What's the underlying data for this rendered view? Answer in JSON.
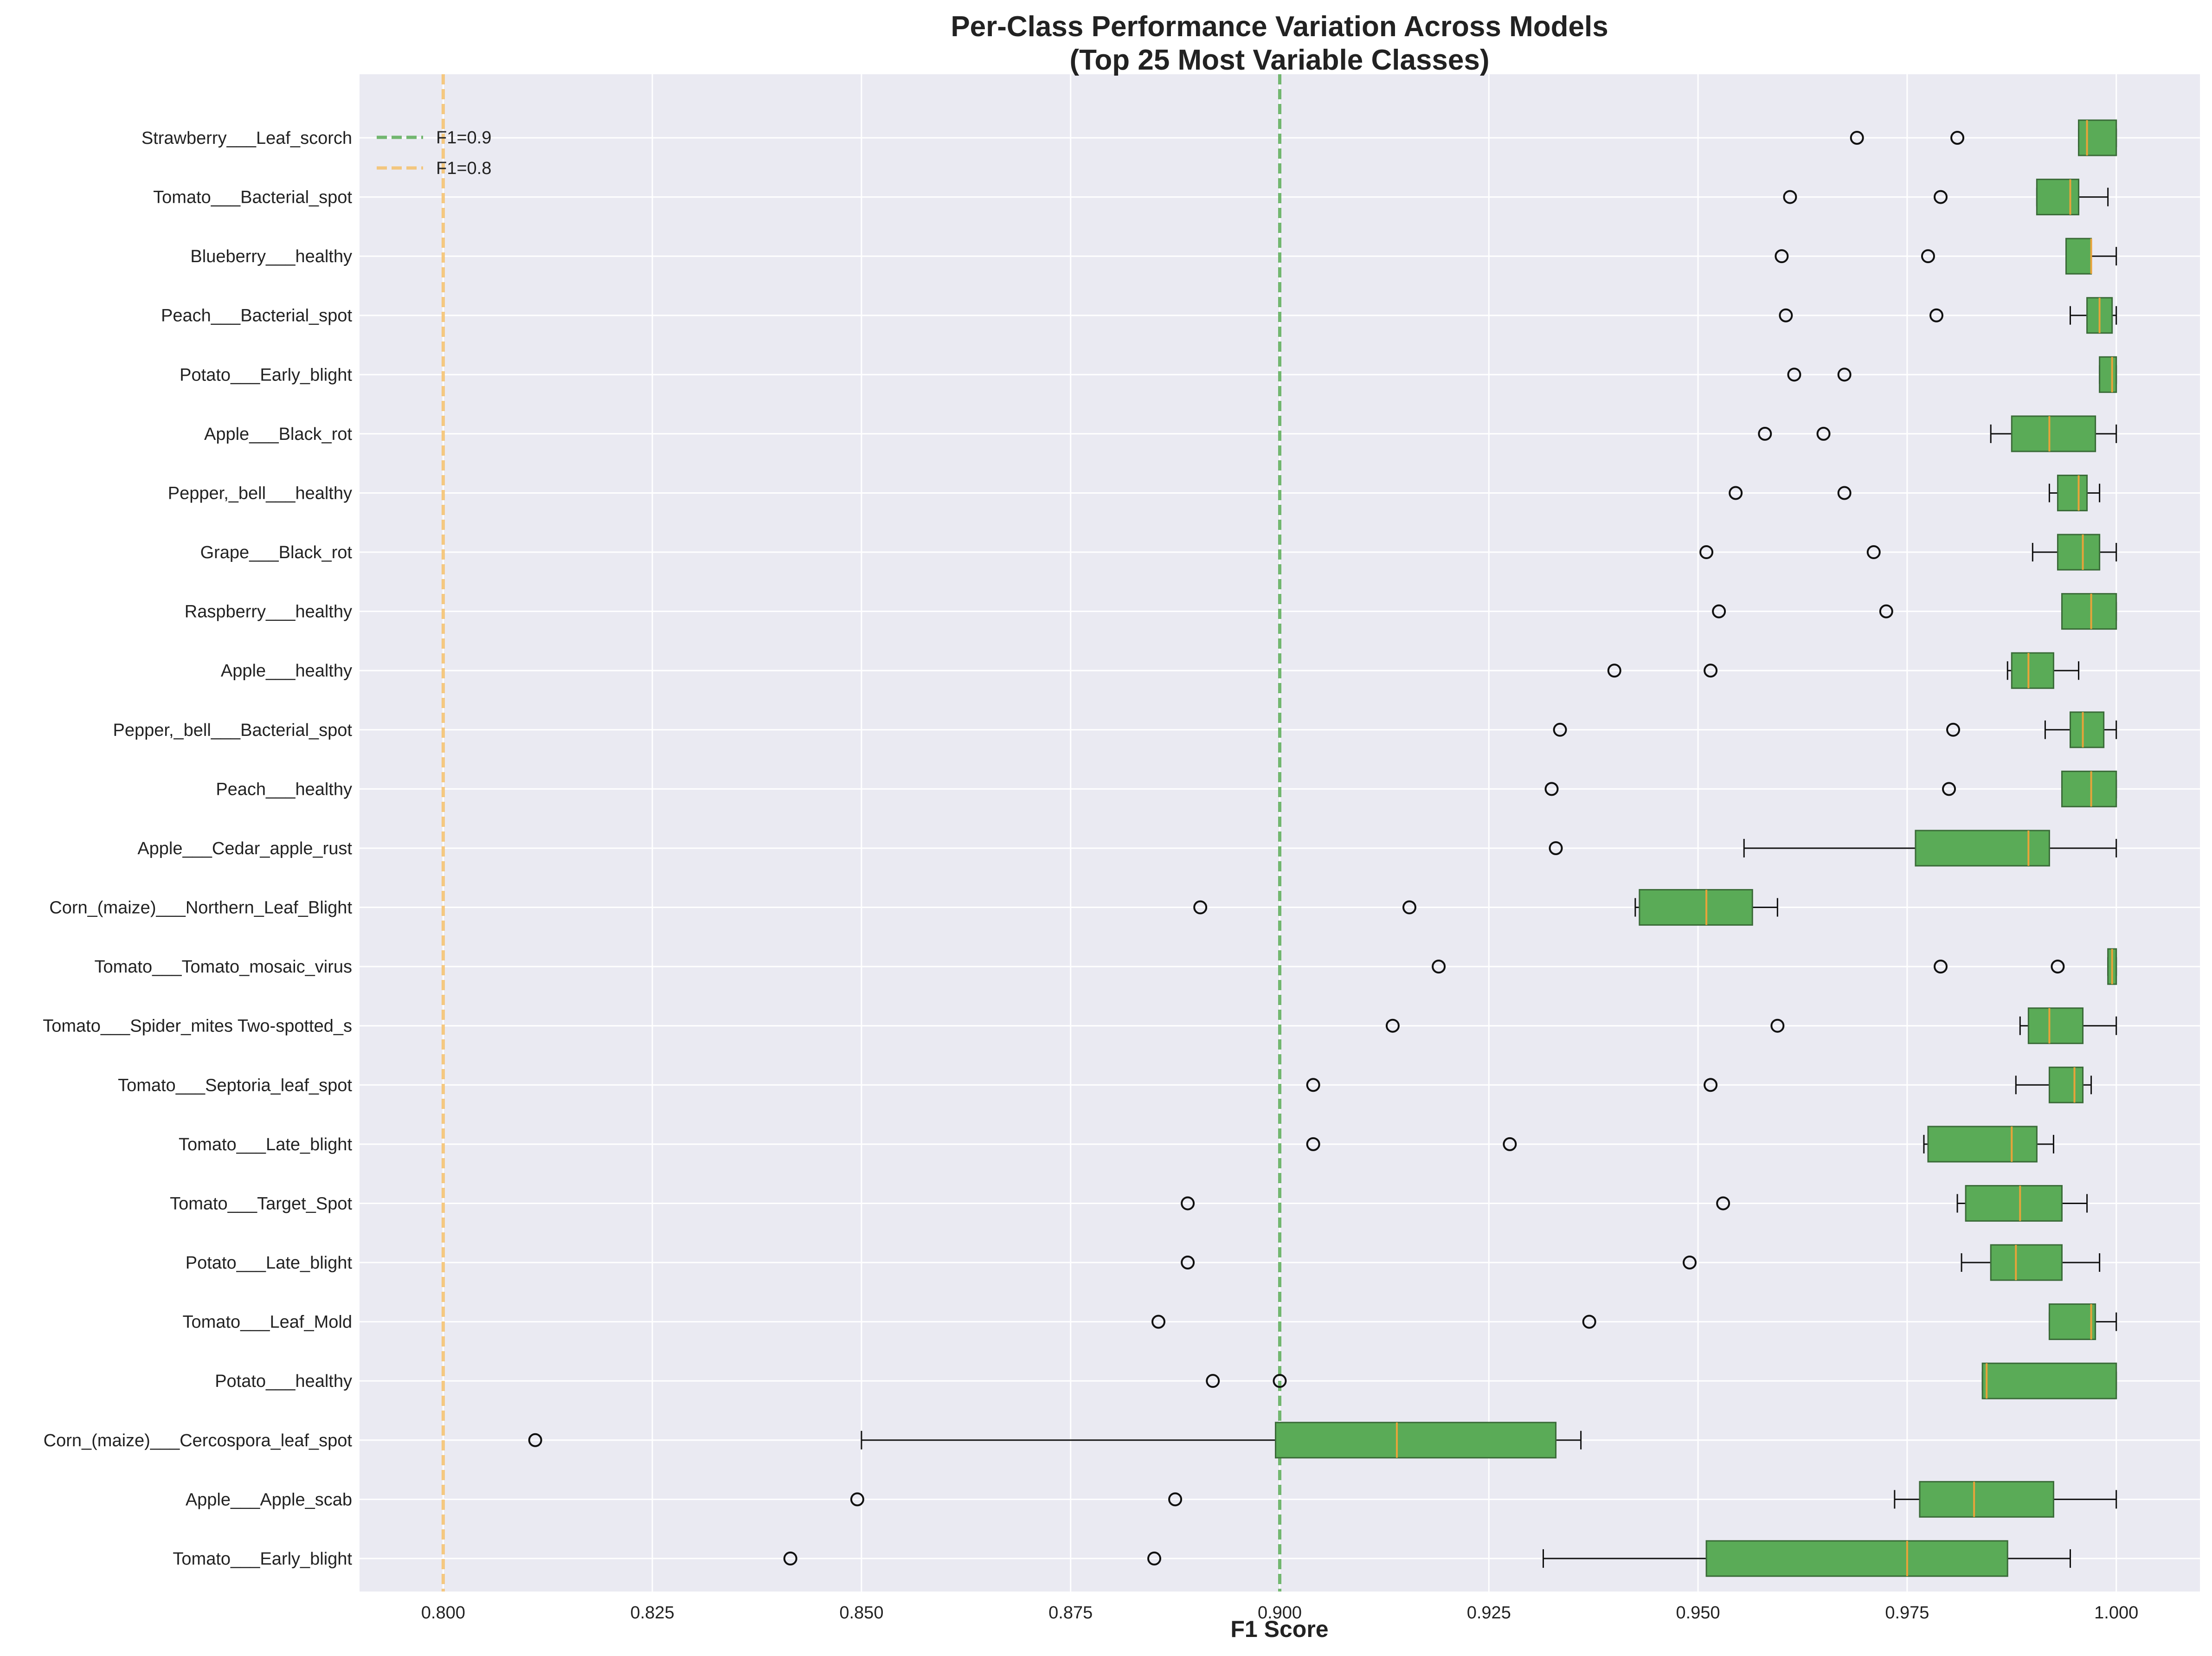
{
  "chart_data": {
    "type": "boxplot",
    "orientation": "horizontal",
    "title_lines": [
      "Per-Class Performance Variation Across Models",
      "(Top 25 Most Variable Classes)"
    ],
    "xlabel": "F1 Score",
    "ylabel": "",
    "xlim": [
      0.79,
      1.01
    ],
    "xticks": [
      "0.800",
      "0.825",
      "0.850",
      "0.875",
      "0.900",
      "0.925",
      "0.950",
      "0.975",
      "1.000"
    ],
    "grid": true,
    "legend_position": "top-left",
    "box_color": "#5aab57",
    "median_color": "#e8a33a",
    "reference_lines": [
      {
        "label": "F1=0.9",
        "value": 0.9,
        "color": "#5aab57"
      },
      {
        "label": "F1=0.8",
        "value": 0.8,
        "color": "#f5c06a"
      }
    ],
    "classes": [
      {
        "name": "Strawberry___Leaf_scorch",
        "whisker_low": 0.9955,
        "q1": 0.9955,
        "median": 0.9965,
        "q3": 1.0,
        "whisker_high": 1.0,
        "outliers": [
          0.969,
          0.981
        ]
      },
      {
        "name": "Tomato___Bacterial_spot",
        "whisker_low": 0.9905,
        "q1": 0.9905,
        "median": 0.9945,
        "q3": 0.9955,
        "whisker_high": 0.999,
        "outliers": [
          0.961,
          0.979
        ]
      },
      {
        "name": "Blueberry___healthy",
        "whisker_low": 0.994,
        "q1": 0.994,
        "median": 0.997,
        "q3": 0.997,
        "whisker_high": 1.0,
        "outliers": [
          0.96,
          0.9775
        ]
      },
      {
        "name": "Peach___Bacterial_spot",
        "whisker_low": 0.9945,
        "q1": 0.9965,
        "median": 0.998,
        "q3": 0.9995,
        "whisker_high": 1.0,
        "outliers": [
          0.9605,
          0.9785
        ]
      },
      {
        "name": "Potato___Early_blight",
        "whisker_low": 0.998,
        "q1": 0.998,
        "median": 0.9995,
        "q3": 1.0,
        "whisker_high": 1.0,
        "outliers": [
          0.9615,
          0.9675
        ]
      },
      {
        "name": "Apple___Black_rot",
        "whisker_low": 0.985,
        "q1": 0.9875,
        "median": 0.992,
        "q3": 0.9975,
        "whisker_high": 1.0,
        "outliers": [
          0.958,
          0.965
        ]
      },
      {
        "name": "Pepper,_bell___healthy",
        "whisker_low": 0.992,
        "q1": 0.993,
        "median": 0.9955,
        "q3": 0.9965,
        "whisker_high": 0.998,
        "outliers": [
          0.9545,
          0.9675
        ]
      },
      {
        "name": "Grape___Black_rot",
        "whisker_low": 0.99,
        "q1": 0.993,
        "median": 0.996,
        "q3": 0.998,
        "whisker_high": 1.0,
        "outliers": [
          0.951,
          0.971
        ]
      },
      {
        "name": "Raspberry___healthy",
        "whisker_low": 0.9935,
        "q1": 0.9935,
        "median": 0.997,
        "q3": 1.0,
        "whisker_high": 1.0,
        "outliers": [
          0.9525,
          0.9725
        ]
      },
      {
        "name": "Apple___healthy",
        "whisker_low": 0.987,
        "q1": 0.9875,
        "median": 0.9895,
        "q3": 0.9925,
        "whisker_high": 0.9955,
        "outliers": [
          0.94,
          0.9515
        ]
      },
      {
        "name": "Pepper,_bell___Bacterial_spot",
        "whisker_low": 0.9915,
        "q1": 0.9945,
        "median": 0.996,
        "q3": 0.9985,
        "whisker_high": 1.0,
        "outliers": [
          0.9335,
          0.9805
        ]
      },
      {
        "name": "Peach___healthy",
        "whisker_low": 0.9935,
        "q1": 0.9935,
        "median": 0.997,
        "q3": 1.0,
        "whisker_high": 1.0,
        "outliers": [
          0.9325,
          0.98
        ]
      },
      {
        "name": "Apple___Cedar_apple_rust",
        "whisker_low": 0.9555,
        "q1": 0.976,
        "median": 0.9895,
        "q3": 0.992,
        "whisker_high": 1.0,
        "outliers": [
          0.933
        ]
      },
      {
        "name": "Corn_(maize)___Northern_Leaf_Blight",
        "whisker_low": 0.9425,
        "q1": 0.943,
        "median": 0.951,
        "q3": 0.9565,
        "whisker_high": 0.9595,
        "outliers": [
          0.8905,
          0.9155
        ]
      },
      {
        "name": "Tomato___Tomato_mosaic_virus",
        "whisker_low": 0.999,
        "q1": 0.999,
        "median": 0.9995,
        "q3": 1.0,
        "whisker_high": 1.0,
        "outliers": [
          0.919,
          0.979,
          0.993
        ]
      },
      {
        "name": "Tomato___Spider_mites Two-spotted_s",
        "whisker_low": 0.9885,
        "q1": 0.9895,
        "median": 0.992,
        "q3": 0.996,
        "whisker_high": 1.0,
        "outliers": [
          0.9135,
          0.9595
        ]
      },
      {
        "name": "Tomato___Septoria_leaf_spot",
        "whisker_low": 0.988,
        "q1": 0.992,
        "median": 0.995,
        "q3": 0.996,
        "whisker_high": 0.997,
        "outliers": [
          0.904,
          0.9515
        ]
      },
      {
        "name": "Tomato___Late_blight",
        "whisker_low": 0.977,
        "q1": 0.9775,
        "median": 0.9875,
        "q3": 0.9905,
        "whisker_high": 0.9925,
        "outliers": [
          0.904,
          0.9275
        ]
      },
      {
        "name": "Tomato___Target_Spot",
        "whisker_low": 0.981,
        "q1": 0.982,
        "median": 0.9885,
        "q3": 0.9935,
        "whisker_high": 0.9965,
        "outliers": [
          0.889,
          0.953
        ]
      },
      {
        "name": "Potato___Late_blight",
        "whisker_low": 0.9815,
        "q1": 0.985,
        "median": 0.988,
        "q3": 0.9935,
        "whisker_high": 0.998,
        "outliers": [
          0.889,
          0.949
        ]
      },
      {
        "name": "Tomato___Leaf_Mold",
        "whisker_low": 0.992,
        "q1": 0.992,
        "median": 0.997,
        "q3": 0.9975,
        "whisker_high": 1.0,
        "outliers": [
          0.8855,
          0.937
        ]
      },
      {
        "name": "Potato___healthy",
        "whisker_low": 0.984,
        "q1": 0.984,
        "median": 0.9845,
        "q3": 1.0,
        "whisker_high": 1.0,
        "outliers": [
          0.892,
          0.9
        ]
      },
      {
        "name": "Corn_(maize)___Cercospora_leaf_spot",
        "whisker_low": 0.85,
        "q1": 0.8995,
        "median": 0.914,
        "q3": 0.933,
        "whisker_high": 0.936,
        "outliers": [
          0.811
        ]
      },
      {
        "name": "Apple___Apple_scab",
        "whisker_low": 0.9735,
        "q1": 0.9765,
        "median": 0.983,
        "q3": 0.9925,
        "whisker_high": 1.0,
        "outliers": [
          0.8495,
          0.8875
        ]
      },
      {
        "name": "Tomato___Early_blight",
        "whisker_low": 0.9315,
        "q1": 0.951,
        "median": 0.975,
        "q3": 0.987,
        "whisker_high": 0.9945,
        "outliers": [
          0.8415,
          0.885
        ]
      }
    ]
  }
}
